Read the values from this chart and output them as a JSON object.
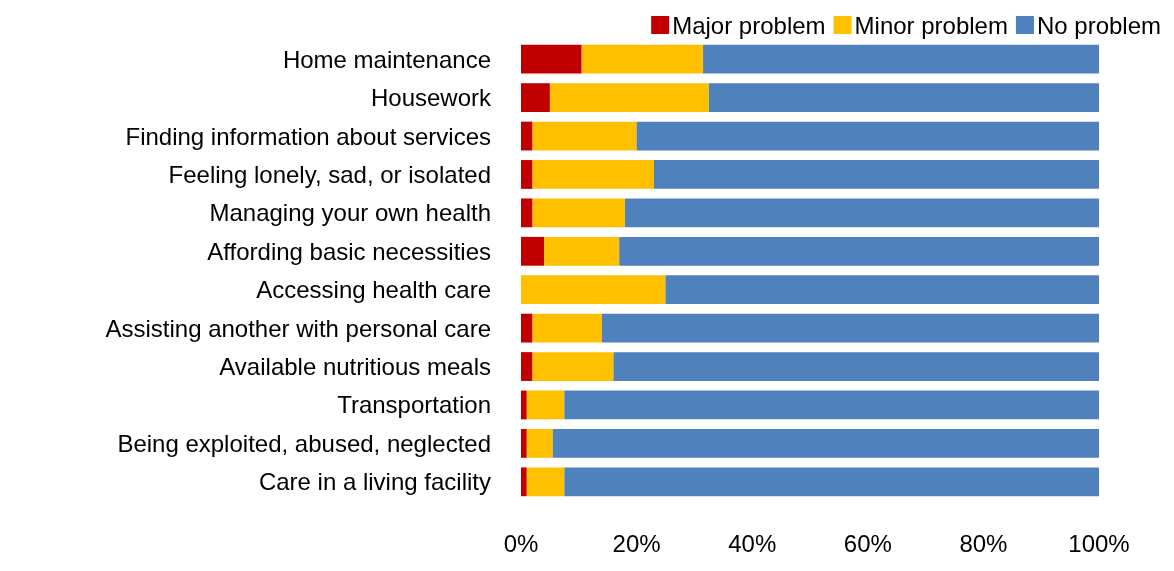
{
  "chart_data": {
    "type": "bar",
    "orientation": "horizontal",
    "stacked": true,
    "categories": [
      "Home maintenance",
      "Housework",
      "Finding information about services",
      "Feeling lonely, sad, or isolated",
      "Managing your own health",
      "Affording basic necessities",
      "Accessing health care",
      "Assisting another with personal care",
      "Available nutritious meals",
      "Transportation",
      "Being exploited, abused, neglected",
      "Care in a living facility"
    ],
    "series": [
      {
        "name": "Major problem",
        "color": "#c00000",
        "values": [
          10.5,
          5,
          2,
          2,
          2,
          4,
          0,
          2,
          2,
          1,
          1,
          1
        ]
      },
      {
        "name": "Minor problem",
        "color": "#ffc000",
        "values": [
          21,
          27.5,
          18,
          21,
          16,
          13,
          25,
          12,
          14,
          6.5,
          4.5,
          6.5
        ]
      },
      {
        "name": "No problem",
        "color": "#4f81bd",
        "values": [
          68.5,
          67.5,
          80,
          77,
          82,
          83,
          75,
          86,
          84,
          92.5,
          94.5,
          92.5
        ]
      }
    ],
    "xlim": [
      0,
      100
    ],
    "xticks": [
      {
        "value": 0,
        "label": "0%"
      },
      {
        "value": 20,
        "label": "20%"
      },
      {
        "value": 40,
        "label": "40%"
      },
      {
        "value": 60,
        "label": "60%"
      },
      {
        "value": 80,
        "label": "80%"
      },
      {
        "value": 100,
        "label": "100%"
      }
    ],
    "legend": "top right",
    "grid": false
  }
}
